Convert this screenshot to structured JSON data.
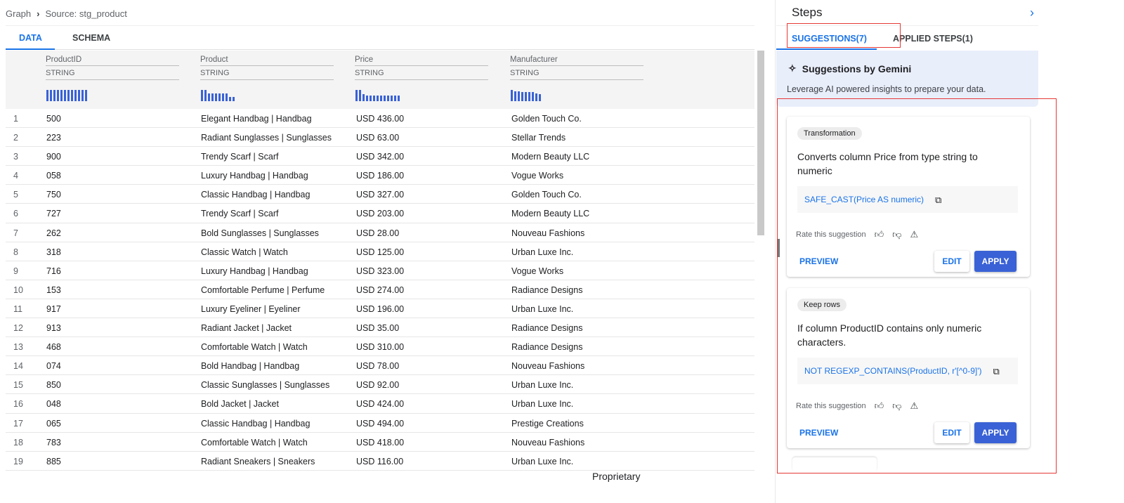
{
  "breadcrumb": {
    "root": "Graph",
    "current": "Source: stg_product"
  },
  "tabs": [
    "DATA",
    "SCHEMA"
  ],
  "active_tab": "DATA",
  "columns": [
    {
      "name": "ProductID",
      "type": "STRING",
      "histogram": [
        1,
        1,
        1,
        1,
        1,
        1,
        1,
        1,
        1,
        1,
        1,
        1
      ]
    },
    {
      "name": "Product",
      "type": "STRING",
      "histogram": [
        1,
        1,
        0.7,
        0.7,
        0.7,
        0.7,
        0.7,
        0.7,
        0.4,
        0.4
      ]
    },
    {
      "name": "Price",
      "type": "STRING",
      "histogram": [
        1,
        1,
        0.6,
        0.5,
        0.5,
        0.5,
        0.5,
        0.5,
        0.5,
        0.5,
        0.5,
        0.5,
        0.5
      ]
    },
    {
      "name": "Manufacturer",
      "type": "STRING",
      "histogram": [
        1,
        0.9,
        0.9,
        0.8,
        0.8,
        0.8,
        0.8,
        0.7,
        0.6
      ]
    }
  ],
  "rows": [
    [
      "1",
      "500",
      "Elegant Handbag | Handbag",
      "USD 436.00",
      "Golden Touch Co."
    ],
    [
      "2",
      "223",
      "Radiant Sunglasses | Sunglasses",
      "USD 63.00",
      "Stellar Trends"
    ],
    [
      "3",
      "900",
      "Trendy Scarf | Scarf",
      "USD 342.00",
      "Modern Beauty LLC"
    ],
    [
      "4",
      "058",
      "Luxury Handbag | Handbag",
      "USD 186.00",
      "Vogue Works"
    ],
    [
      "5",
      "750",
      "Classic Handbag | Handbag",
      "USD 327.00",
      "Golden Touch Co."
    ],
    [
      "6",
      "727",
      "Trendy Scarf | Scarf",
      "USD 203.00",
      "Modern Beauty LLC"
    ],
    [
      "7",
      "262",
      "Bold Sunglasses | Sunglasses",
      "USD 28.00",
      "Nouveau Fashions"
    ],
    [
      "8",
      "318",
      "Classic Watch | Watch",
      "USD 125.00",
      "Urban Luxe Inc."
    ],
    [
      "9",
      "716",
      "Luxury Handbag | Handbag",
      "USD 323.00",
      "Vogue Works"
    ],
    [
      "10",
      "153",
      "Comfortable Perfume | Perfume",
      "USD 274.00",
      "Radiance Designs"
    ],
    [
      "11",
      "917",
      "Luxury Eyeliner | Eyeliner",
      "USD 196.00",
      "Urban Luxe Inc."
    ],
    [
      "12",
      "913",
      "Radiant Jacket | Jacket",
      "USD 35.00",
      "Radiance Designs"
    ],
    [
      "13",
      "468",
      "Comfortable Watch | Watch",
      "USD 310.00",
      "Radiance Designs"
    ],
    [
      "14",
      "074",
      "Bold Handbag | Handbag",
      "USD 78.00",
      "Nouveau Fashions"
    ],
    [
      "15",
      "850",
      "Classic Sunglasses | Sunglasses",
      "USD 92.00",
      "Urban Luxe Inc."
    ],
    [
      "16",
      "048",
      "Bold Jacket | Jacket",
      "USD 424.00",
      "Urban Luxe Inc."
    ],
    [
      "17",
      "065",
      "Classic Handbag | Handbag",
      "USD 494.00",
      "Prestige Creations"
    ],
    [
      "18",
      "783",
      "Comfortable Watch | Watch",
      "USD 418.00",
      "Nouveau Fashions"
    ],
    [
      "19",
      "885",
      "Radiant Sneakers | Sneakers",
      "USD 116.00",
      "Urban Luxe Inc."
    ]
  ],
  "steps": {
    "title": "Steps",
    "tabs": [
      "SUGGESTIONS(7)",
      "APPLIED STEPS(1)"
    ],
    "gemini_title": "Suggestions by Gemini",
    "gemini_desc": "Leverage AI powered insights to prepare your data.",
    "cards": [
      {
        "chip": "Transformation",
        "desc": "Converts column Price from type string to numeric",
        "code": "SAFE_CAST(Price AS numeric)",
        "rate": "Rate this suggestion",
        "preview": "PREVIEW",
        "edit": "EDIT",
        "apply": "APPLY"
      },
      {
        "chip": "Keep rows",
        "desc": "If column ProductID contains only numeric characters.",
        "code": "NOT REGEXP_CONTAINS(ProductID, r'[^0-9]')",
        "rate": "Rate this suggestion",
        "preview": "PREVIEW",
        "edit": "EDIT",
        "apply": "APPLY"
      }
    ]
  },
  "footer": "Proprietary",
  "colors": {
    "accent": "#1a73e8",
    "apply": "#3a62d6",
    "highlight": "#e53935"
  }
}
